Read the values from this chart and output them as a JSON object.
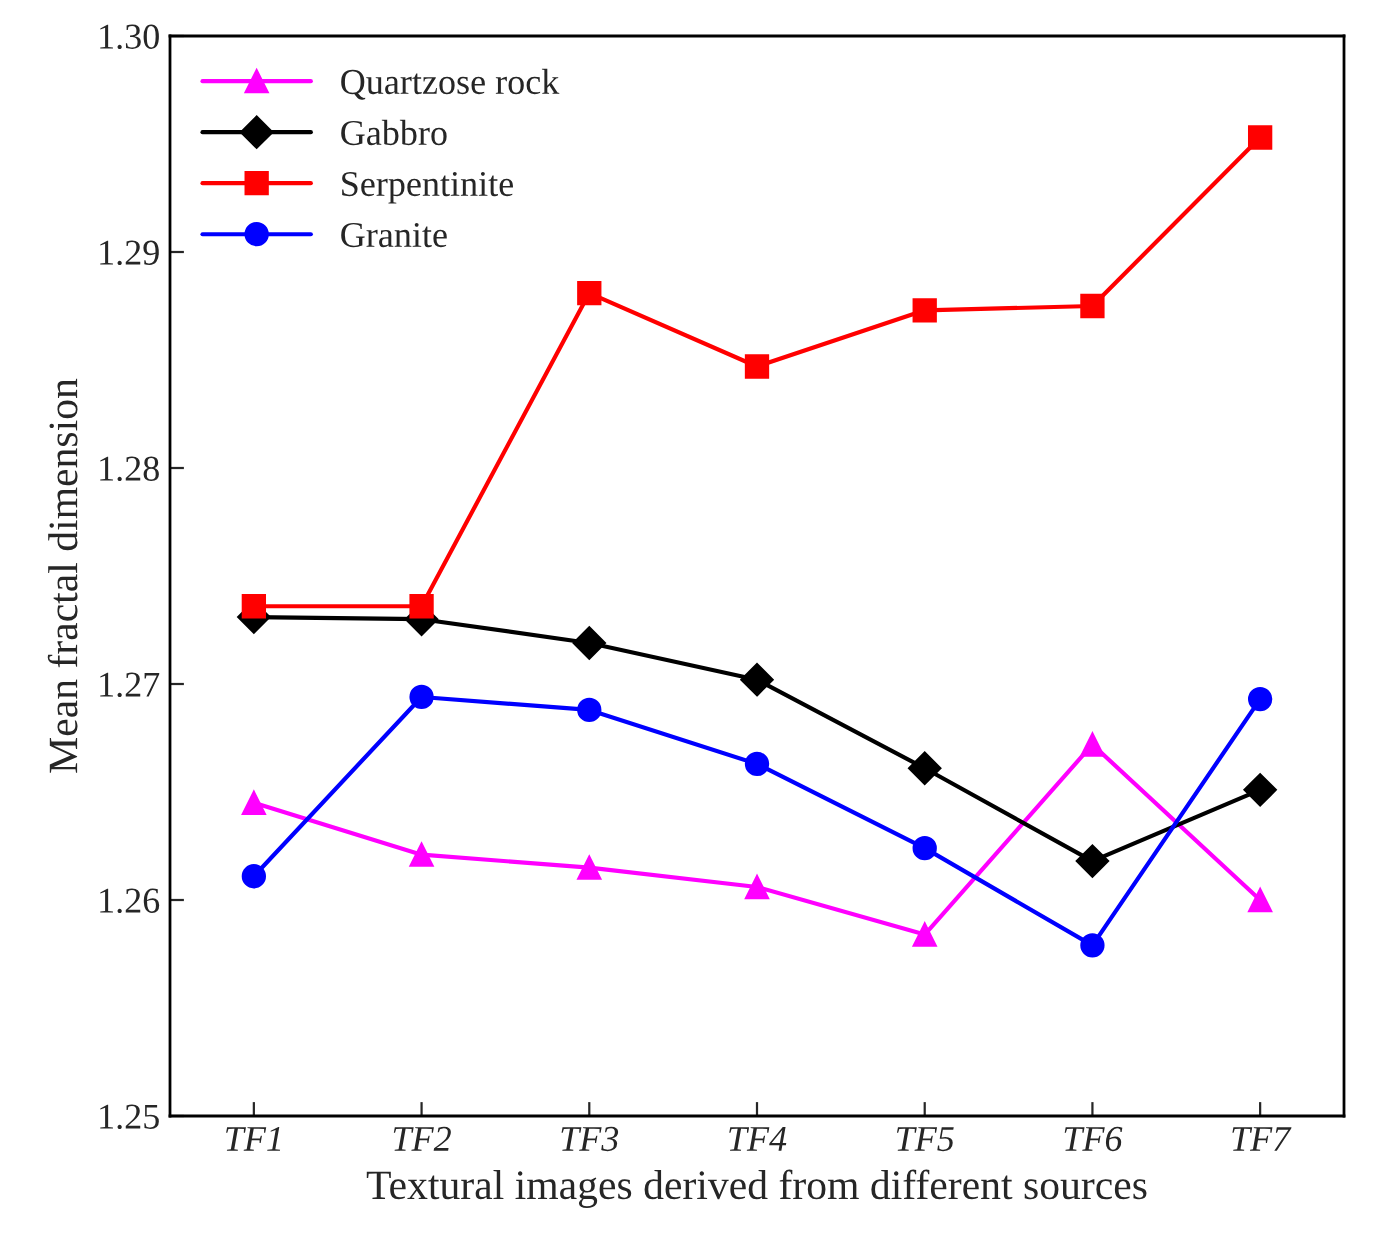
{
  "chart_data": {
    "type": "line",
    "xlabel": "Textural images derived from different sources",
    "ylabel": "Mean fractal dimension",
    "categories": [
      "TF1",
      "TF2",
      "TF3",
      "TF4",
      "TF5",
      "TF6",
      "TF7"
    ],
    "series": [
      {
        "name": "Quartzose rock",
        "color": "#ff00ff",
        "marker": "triangle",
        "values": [
          1.2645,
          1.2621,
          1.2615,
          1.2606,
          1.2584,
          1.2672,
          1.26
        ]
      },
      {
        "name": "Gabbro",
        "color": "#000000",
        "marker": "diamond",
        "values": [
          1.2731,
          1.273,
          1.2719,
          1.2702,
          1.2661,
          1.2618,
          1.2651
        ]
      },
      {
        "name": "Serpentinite",
        "color": "#ff0000",
        "marker": "square",
        "values": [
          1.2736,
          1.2736,
          1.2881,
          1.2847,
          1.2873,
          1.2875,
          1.2953
        ]
      },
      {
        "name": "Granite",
        "color": "#0000ff",
        "marker": "circle",
        "values": [
          1.2611,
          1.2694,
          1.2688,
          1.2663,
          1.2624,
          1.2579,
          1.2693
        ]
      }
    ],
    "ylim": [
      1.25,
      1.3
    ],
    "yticks": [
      {
        "value": 1.25,
        "label": "1.25"
      },
      {
        "value": 1.26,
        "label": "1.26"
      },
      {
        "value": 1.27,
        "label": "1.27"
      },
      {
        "value": 1.28,
        "label": "1.28"
      },
      {
        "value": 1.29,
        "label": "1.29"
      },
      {
        "value": 1.3,
        "label": "1.30"
      }
    ],
    "grid": false,
    "legend": "top left",
    "line_style": "solid"
  }
}
